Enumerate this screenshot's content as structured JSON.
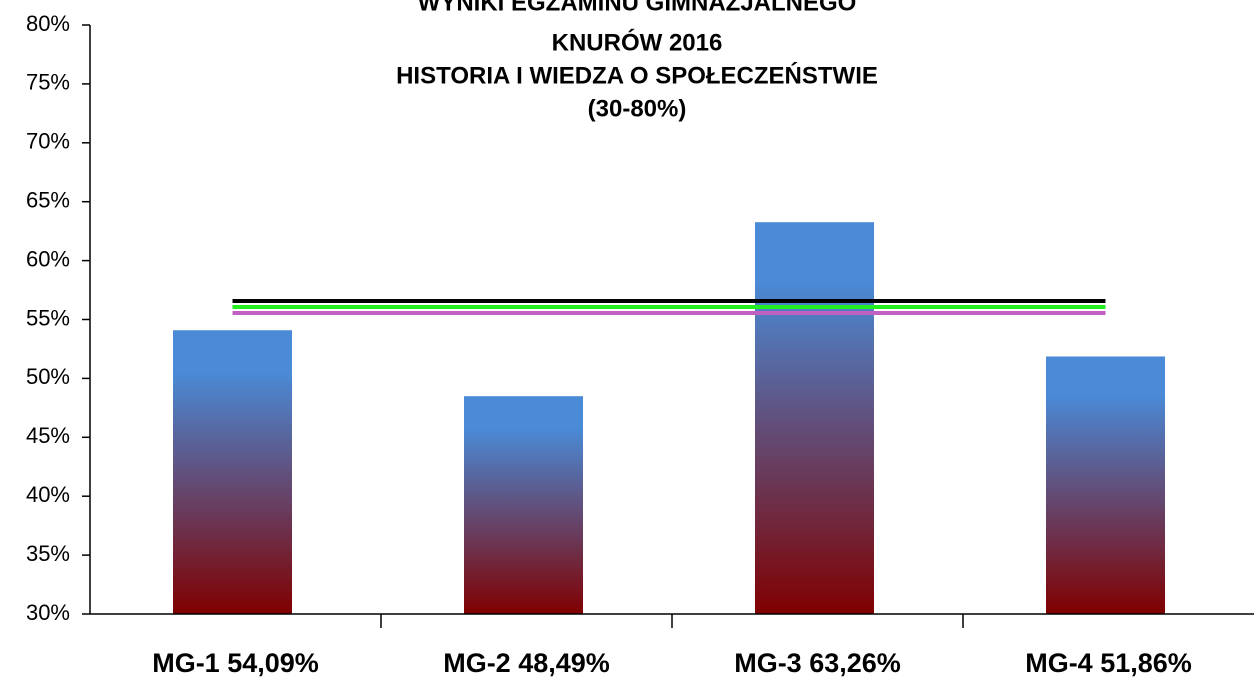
{
  "chart_data": {
    "type": "bar",
    "title": [
      "WYNIKI EGZAMINU GIMNAZJALNEGO",
      "KNURÓW 2016",
      "HISTORIA I WIEDZA O SPOŁECZEŃSTWIE",
      "(30-80%)"
    ],
    "categories": [
      "MG-1 54,09%",
      "MG-2 48,49%",
      "MG-3 63,26%",
      "MG-4 51,86%"
    ],
    "values": [
      54.09,
      48.49,
      63.26,
      51.86
    ],
    "color": [
      "#4a8ad6",
      "#800000"
    ],
    "ylim": [
      30,
      80
    ],
    "yticks": [
      {
        "value": 30,
        "label": "30%"
      },
      {
        "value": 35,
        "label": "35%"
      },
      {
        "value": 40,
        "label": "40%"
      },
      {
        "value": 45,
        "label": "45%"
      },
      {
        "value": 50,
        "label": "50%"
      },
      {
        "value": 55,
        "label": "55%"
      },
      {
        "value": 60,
        "label": "60%"
      },
      {
        "value": 65,
        "label": "65%"
      },
      {
        "value": 70,
        "label": "70%"
      },
      {
        "value": 75,
        "label": "75%"
      },
      {
        "value": 80,
        "label": "80%"
      }
    ],
    "reference_lines": [
      {
        "value": 56.57,
        "color": "#000000"
      },
      {
        "value": 56.06,
        "color": "#22ee22"
      },
      {
        "value": 55.55,
        "color": "#c060c0"
      }
    ],
    "grid": false
  }
}
